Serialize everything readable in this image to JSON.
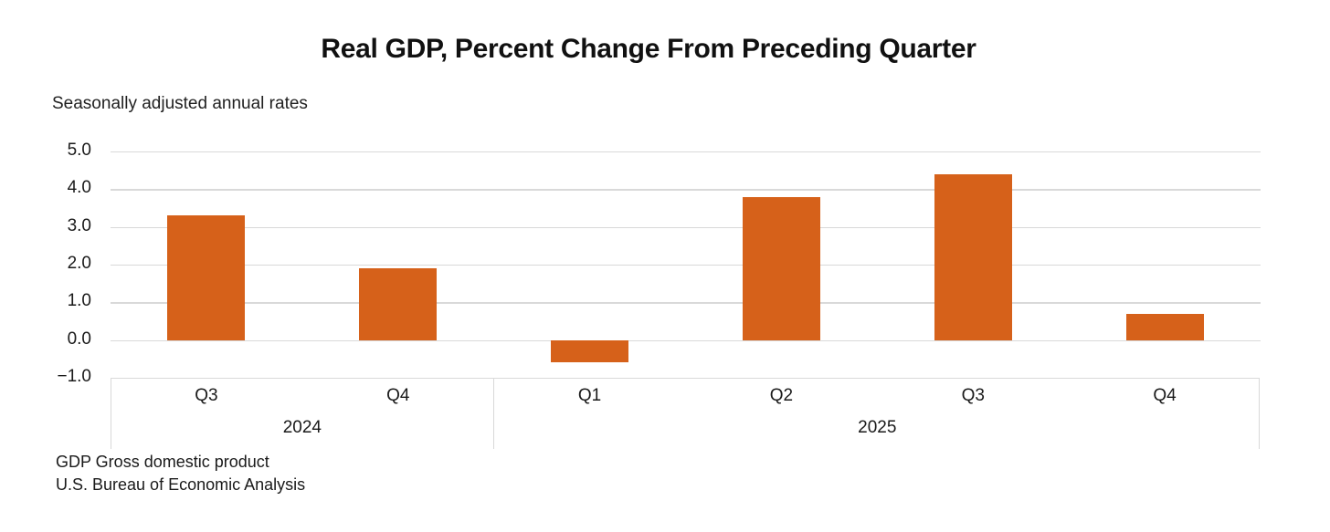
{
  "page": {
    "background": "#FFFFFF"
  },
  "chart_data": {
    "type": "bar",
    "title": "Real GDP, Percent Change From Preceding Quarter",
    "subtitle": "Seasonally adjusted annual rates",
    "categories": [
      "Q3",
      "Q4",
      "Q1",
      "Q2",
      "Q3",
      "Q4"
    ],
    "year_groups": [
      {
        "label": "2024",
        "span": 2
      },
      {
        "label": "2025",
        "span": 4
      }
    ],
    "values": [
      3.3,
      1.9,
      -0.6,
      3.8,
      4.4,
      0.7
    ],
    "ylim": [
      -1.0,
      5.0
    ],
    "ytick_step": 1.0,
    "ytick_labels": [
      "5.0",
      "4.0",
      "3.0",
      "2.0",
      "1.0",
      "0.0",
      "−1.0"
    ],
    "grid": true,
    "legend": false,
    "bar_color": "#D6611A",
    "gridline_color": "#D9D9D9",
    "text_color": "#1A1A1A"
  },
  "footer": {
    "line1": "GDP Gross domestic product",
    "line2": "U.S. Bureau of Economic Analysis"
  }
}
